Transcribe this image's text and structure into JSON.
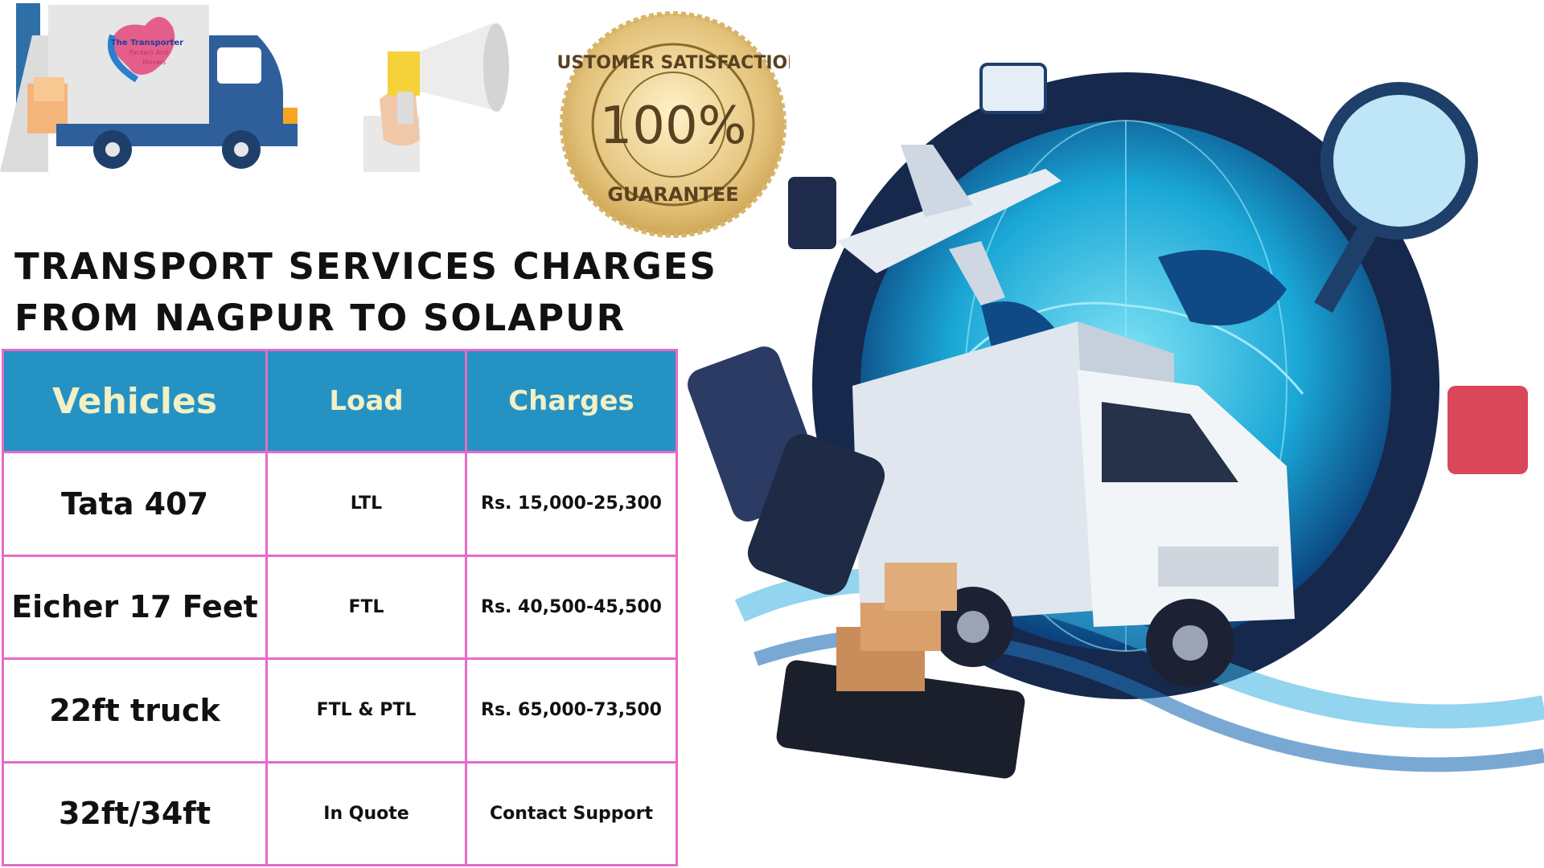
{
  "logo": {
    "brand_text": "The Transporter Packers And Movers"
  },
  "seal": {
    "top_text": "CUSTOMER SATISFACTION",
    "center_text": "100%",
    "bottom_text": "GUARANTEE"
  },
  "title": {
    "line1": "TRANSPORT SERVICES CHARGES",
    "line2": "FROM NAGPUR TO SOLAPUR"
  },
  "table": {
    "headers": [
      "Vehicles",
      "Load",
      "Charges"
    ],
    "rows": [
      {
        "vehicle": "Tata 407",
        "load": "LTL",
        "charges": "Rs. 15,000-25,300"
      },
      {
        "vehicle": "Eicher 17 Feet",
        "load": "FTL",
        "charges": "Rs. 40,500-45,500"
      },
      {
        "vehicle": "22ft truck",
        "load": "FTL & PTL",
        "charges": "Rs. 65,000-73,500"
      },
      {
        "vehicle": "32ft/34ft",
        "load": "In Quote",
        "charges": "Contact Support"
      }
    ]
  },
  "colors": {
    "header_bg": "#2592c4",
    "header_text": "#f2f0c4",
    "border": "#e66bc6",
    "seal_gold": "#d8b56a"
  },
  "icons": [
    "delivery-truck-logo",
    "megaphone-icon",
    "guarantee-seal",
    "logistics-illustration"
  ]
}
